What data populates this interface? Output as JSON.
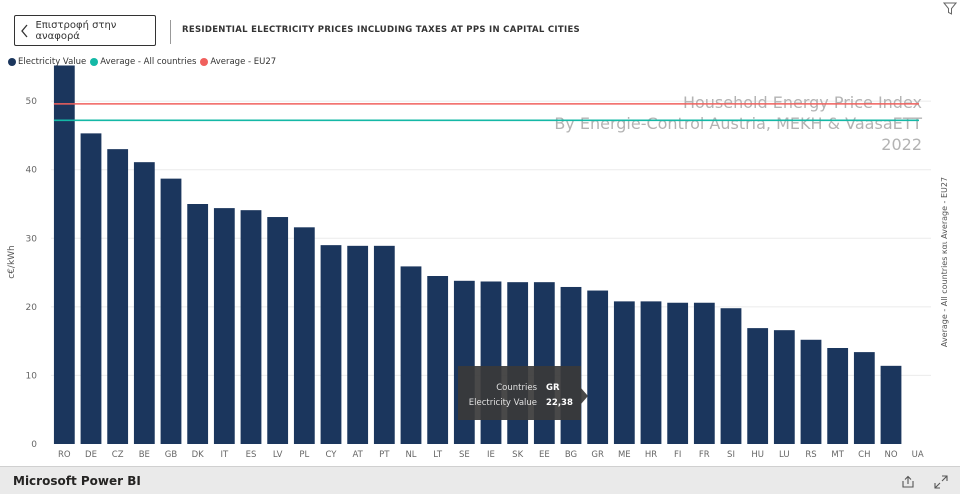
{
  "nav": {
    "back_label": "Επιστροφή στην αναφορά"
  },
  "chart_title": "RESIDENTIAL ELECTRICITY PRICES INCLUDING TAXES AT PPS IN CAPITAL CITIES",
  "watermark": {
    "line1": "Household Energy Price Index",
    "line2": "By Energie-Control Austria, MEKH & VaasaETT",
    "line3": "2022"
  },
  "tooltip": {
    "countries_label": "Countries",
    "countries_value": "GR",
    "value_label": "Electricity Value",
    "value_value": "22,38"
  },
  "footer": {
    "brand": "Microsoft Power BI"
  },
  "icons": {
    "back": "chevron-left-icon",
    "filter": "filter-icon",
    "share": "share-icon",
    "expand": "expand-icon"
  },
  "chart_data": {
    "type": "bar",
    "ylabel": "c€/kWh",
    "y2label": "Average - All countries και Average - EU27",
    "ylim": [
      0,
      56
    ],
    "yticks": [
      0,
      10,
      20,
      30,
      40,
      50
    ],
    "grid": true,
    "legend_position": "top-left",
    "categories": [
      "RO",
      "DE",
      "CZ",
      "BE",
      "GB",
      "DK",
      "IT",
      "ES",
      "LV",
      "PL",
      "CY",
      "AT",
      "PT",
      "NL",
      "LT",
      "SE",
      "IE",
      "SK",
      "EE",
      "BG",
      "GR",
      "ME",
      "HR",
      "FI",
      "FR",
      "SI",
      "HU",
      "LU",
      "RS",
      "MT",
      "CH",
      "NO",
      "UA"
    ],
    "series": [
      {
        "name": "Electricity Value",
        "color": "#1b365d",
        "values": [
          55.2,
          45.3,
          43.0,
          41.1,
          38.7,
          35.0,
          34.4,
          34.1,
          33.1,
          31.6,
          29.0,
          28.9,
          28.9,
          25.9,
          24.5,
          23.8,
          23.7,
          23.6,
          23.6,
          22.9,
          22.38,
          20.8,
          20.8,
          20.6,
          20.6,
          19.8,
          16.9,
          16.6,
          15.2,
          14.0,
          13.4,
          11.4,
          null
        ]
      },
      {
        "name": "Average - All countries",
        "type": "line",
        "color": "#14b8a6",
        "value": 47.2
      },
      {
        "name": "Average - EU27",
        "type": "line",
        "color": "#f0605d",
        "value": 49.6
      }
    ]
  }
}
